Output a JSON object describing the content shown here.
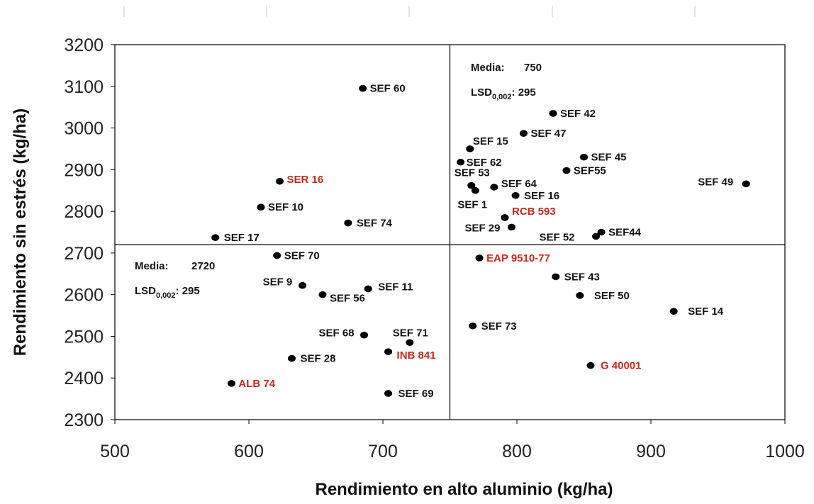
{
  "chart_data": {
    "type": "scatter",
    "title": "",
    "xlabel": "Rendimiento  en alto aluminio  (kg/ha)",
    "ylabel": "Rendimiento  sin estrés (kg/ha)",
    "xlim": [
      500,
      1000
    ],
    "ylim": [
      2300,
      3200
    ],
    "x_ticks": [
      500,
      600,
      700,
      800,
      900,
      1000
    ],
    "y_ticks": [
      2300,
      2400,
      2500,
      2600,
      2700,
      2800,
      2900,
      3000,
      3100,
      3200
    ],
    "grid": false,
    "colors": {
      "point": "#000000",
      "label_default": "#111111",
      "label_highlight": "#c8281e",
      "frame": "#000000"
    },
    "reference_lines": {
      "x": 750,
      "y": 2720
    },
    "annotations": [
      {
        "id": "high",
        "media_label": "Media:",
        "media_value": "750",
        "lsd_label": "LSD",
        "lsd_sub": "0,002",
        "lsd_value": ": 295"
      },
      {
        "id": "low",
        "media_label": "Media:",
        "media_value": "2720",
        "lsd_label": "LSD",
        "lsd_sub": "0,002",
        "lsd_value": ": 295"
      }
    ],
    "points": [
      {
        "label": "SEF 60",
        "x": 685,
        "y": 3095,
        "highlight": false
      },
      {
        "label": "SEF 42",
        "x": 827,
        "y": 3035,
        "highlight": false
      },
      {
        "label": "SEF 47",
        "x": 805,
        "y": 2987,
        "highlight": false
      },
      {
        "label": "SEF 15",
        "x": 765,
        "y": 2950,
        "highlight": false
      },
      {
        "label": "SEF 45",
        "x": 850,
        "y": 2930,
        "highlight": false
      },
      {
        "label": "SEF 62",
        "x": 758,
        "y": 2918,
        "highlight": false
      },
      {
        "label": "SEF55",
        "x": 837,
        "y": 2898,
        "highlight": false
      },
      {
        "label": "SER 16",
        "x": 623,
        "y": 2872,
        "highlight": true
      },
      {
        "label": "SEF 53",
        "x": 766,
        "y": 2862,
        "highlight": false
      },
      {
        "label": "SEF 64",
        "x": 783,
        "y": 2858,
        "highlight": false
      },
      {
        "label": "SEF 49",
        "x": 971,
        "y": 2866,
        "highlight": false
      },
      {
        "label": "SEF 1",
        "x": 769,
        "y": 2850,
        "highlight": false
      },
      {
        "label": "SEF 16",
        "x": 799,
        "y": 2838,
        "highlight": false
      },
      {
        "label": "SEF 10",
        "x": 609,
        "y": 2810,
        "highlight": false
      },
      {
        "label": "RCB 593",
        "x": 791,
        "y": 2785,
        "highlight": true
      },
      {
        "label": "SEF 74",
        "x": 674,
        "y": 2772,
        "highlight": false
      },
      {
        "label": "SEF 29",
        "x": 796,
        "y": 2762,
        "highlight": false
      },
      {
        "label": "SEF44",
        "x": 863,
        "y": 2750,
        "highlight": false
      },
      {
        "label": "SEF 52",
        "x": 859,
        "y": 2740,
        "highlight": false
      },
      {
        "label": "SEF 17",
        "x": 575,
        "y": 2737,
        "highlight": false
      },
      {
        "label": "SEF 70",
        "x": 621,
        "y": 2694,
        "highlight": false
      },
      {
        "label": "EAP 9510-77",
        "x": 772,
        "y": 2688,
        "highlight": true
      },
      {
        "label": "SEF 43",
        "x": 829,
        "y": 2643,
        "highlight": false
      },
      {
        "label": "SEF 9",
        "x": 640,
        "y": 2622,
        "highlight": false
      },
      {
        "label": "SEF 11",
        "x": 689,
        "y": 2614,
        "highlight": false
      },
      {
        "label": "SEF 56",
        "x": 655,
        "y": 2600,
        "highlight": false
      },
      {
        "label": "SEF 50",
        "x": 847,
        "y": 2598,
        "highlight": false
      },
      {
        "label": "SEF 14",
        "x": 917,
        "y": 2560,
        "highlight": false
      },
      {
        "label": "SEF 73",
        "x": 767,
        "y": 2525,
        "highlight": false
      },
      {
        "label": "SEF 68",
        "x": 686,
        "y": 2503,
        "highlight": false
      },
      {
        "label": "SEF 71",
        "x": 720,
        "y": 2485,
        "highlight": false
      },
      {
        "label": "INB 841",
        "x": 704,
        "y": 2463,
        "highlight": true
      },
      {
        "label": "SEF 28",
        "x": 632,
        "y": 2447,
        "highlight": false
      },
      {
        "label": "G 40001",
        "x": 855,
        "y": 2430,
        "highlight": true
      },
      {
        "label": "ALB 74",
        "x": 587,
        "y": 2387,
        "highlight": true
      },
      {
        "label": "SEF 69",
        "x": 704,
        "y": 2363,
        "highlight": false
      }
    ]
  }
}
